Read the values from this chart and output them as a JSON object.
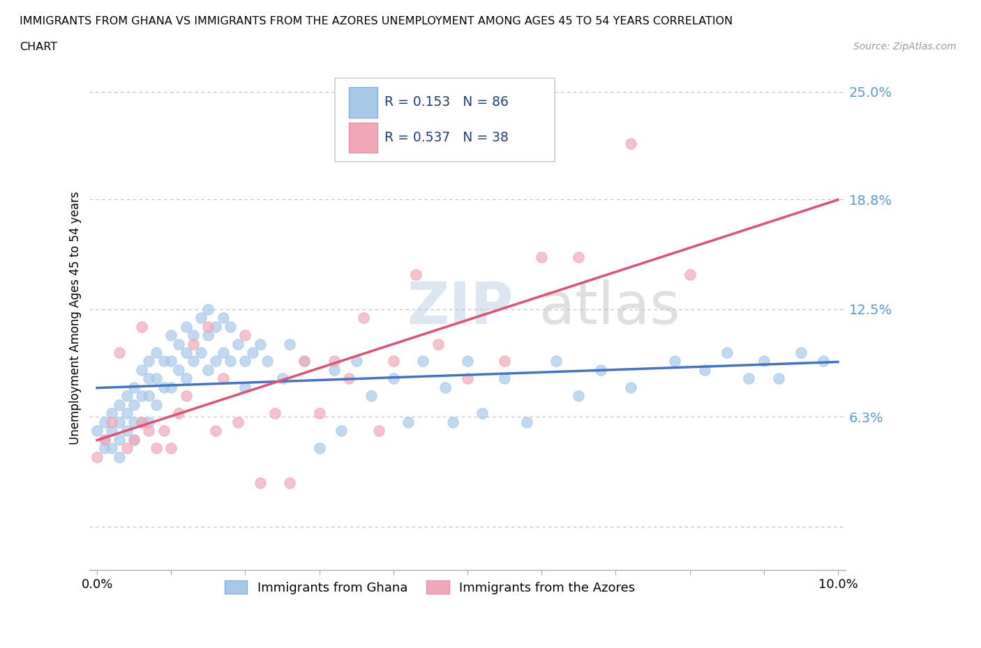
{
  "title_line1": "IMMIGRANTS FROM GHANA VS IMMIGRANTS FROM THE AZORES UNEMPLOYMENT AMONG AGES 45 TO 54 YEARS CORRELATION",
  "title_line2": "CHART",
  "source_text": "Source: ZipAtlas.com",
  "ylabel": "Unemployment Among Ages 45 to 54 years",
  "ghana_color": "#A8C8E8",
  "azores_color": "#F0A8B8",
  "ghana_line_color": "#4472C4",
  "azores_line_color": "#E05070",
  "legend_label_ghana": "Immigrants from Ghana",
  "legend_label_azores": "Immigrants from the Azores",
  "watermark_zip": "ZIP",
  "watermark_atlas": "atlas",
  "background_color": "#FFFFFF",
  "grid_color": "#BBBBBB",
  "ytick_values": [
    0.0,
    0.063,
    0.125,
    0.188,
    0.25
  ],
  "ytick_labels": [
    "",
    "6.3%",
    "12.5%",
    "18.8%",
    "25.0%"
  ],
  "right_ytick_color": "#5B9BD5",
  "legend_text_color": "#1F3F7A",
  "ghana_R": "0.153",
  "ghana_N": "86",
  "azores_R": "0.537",
  "azores_N": "38"
}
